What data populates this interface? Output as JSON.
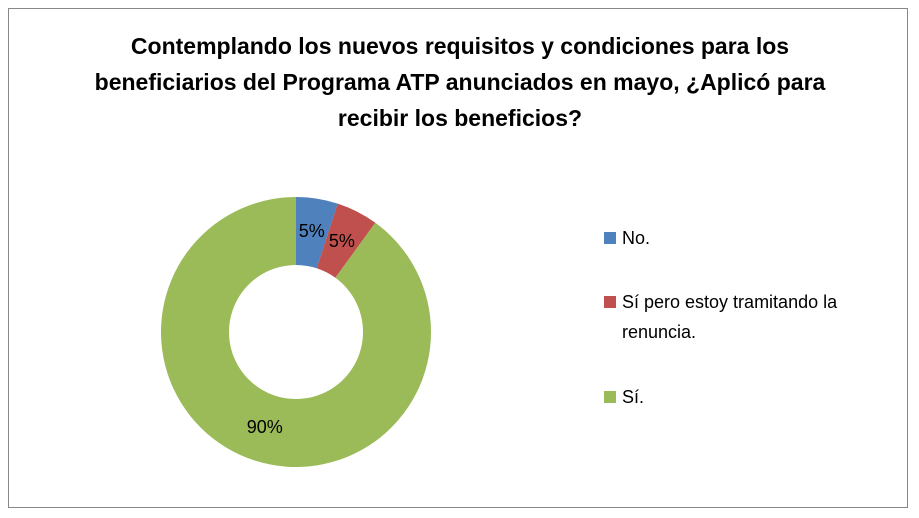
{
  "chart_data": {
    "type": "donut",
    "title": "Contemplando los nuevos requisitos y condiciones para los beneficiarios del Programa ATP anunciados en mayo, ¿Aplicó para recibir los beneficios?",
    "categories": [
      "No.",
      "Sí pero estoy tramitando la renuncia.",
      "Sí."
    ],
    "values": [
      5,
      5,
      90
    ],
    "value_labels": [
      "5%",
      "5%",
      "90%"
    ],
    "colors": [
      "#4f81bd",
      "#c0504d",
      "#9bbb59"
    ],
    "legend": "right"
  }
}
